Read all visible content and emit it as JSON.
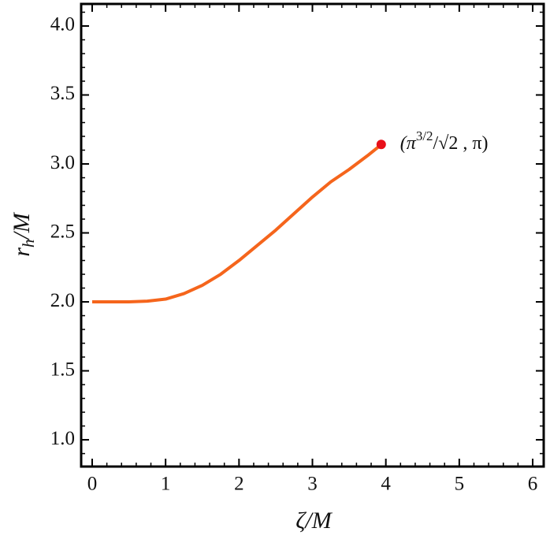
{
  "chart_data": {
    "type": "line",
    "xlabel": [
      "ζ",
      "/M"
    ],
    "ylabel": [
      "r",
      "h",
      "/M"
    ],
    "x": [
      0,
      0.25,
      0.5,
      0.75,
      1,
      1.25,
      1.5,
      1.75,
      2,
      2.25,
      2.5,
      2.75,
      3,
      3.25,
      3.5,
      3.75,
      3.937
    ],
    "series": [
      {
        "color": "#f5651c",
        "values": [
          2.0,
          2.0,
          2.0,
          2.005,
          2.02,
          2.06,
          2.12,
          2.2,
          2.3,
          2.41,
          2.52,
          2.64,
          2.76,
          2.87,
          2.96,
          3.06,
          3.14
        ]
      }
    ],
    "point": {
      "x": 3.937,
      "y": 3.1416,
      "color": "#e8101a",
      "label": [
        "(π",
        "3/2",
        "/√2 , π)"
      ]
    },
    "xlim": [
      -0.15,
      6.15
    ],
    "ylim": [
      0.806,
      4.16
    ],
    "xticks": [
      0,
      1,
      2,
      3,
      4,
      5,
      6
    ],
    "yticks": [
      {
        "value": 1.0,
        "label": "1.0"
      },
      {
        "value": 1.5,
        "label": "1.5"
      },
      {
        "value": 2.0,
        "label": "2.0"
      },
      {
        "value": 2.5,
        "label": "2.5"
      },
      {
        "value": 3.0,
        "label": "3.0"
      },
      {
        "value": 3.5,
        "label": "3.5"
      },
      {
        "value": 4.0,
        "label": "4.0"
      }
    ]
  }
}
